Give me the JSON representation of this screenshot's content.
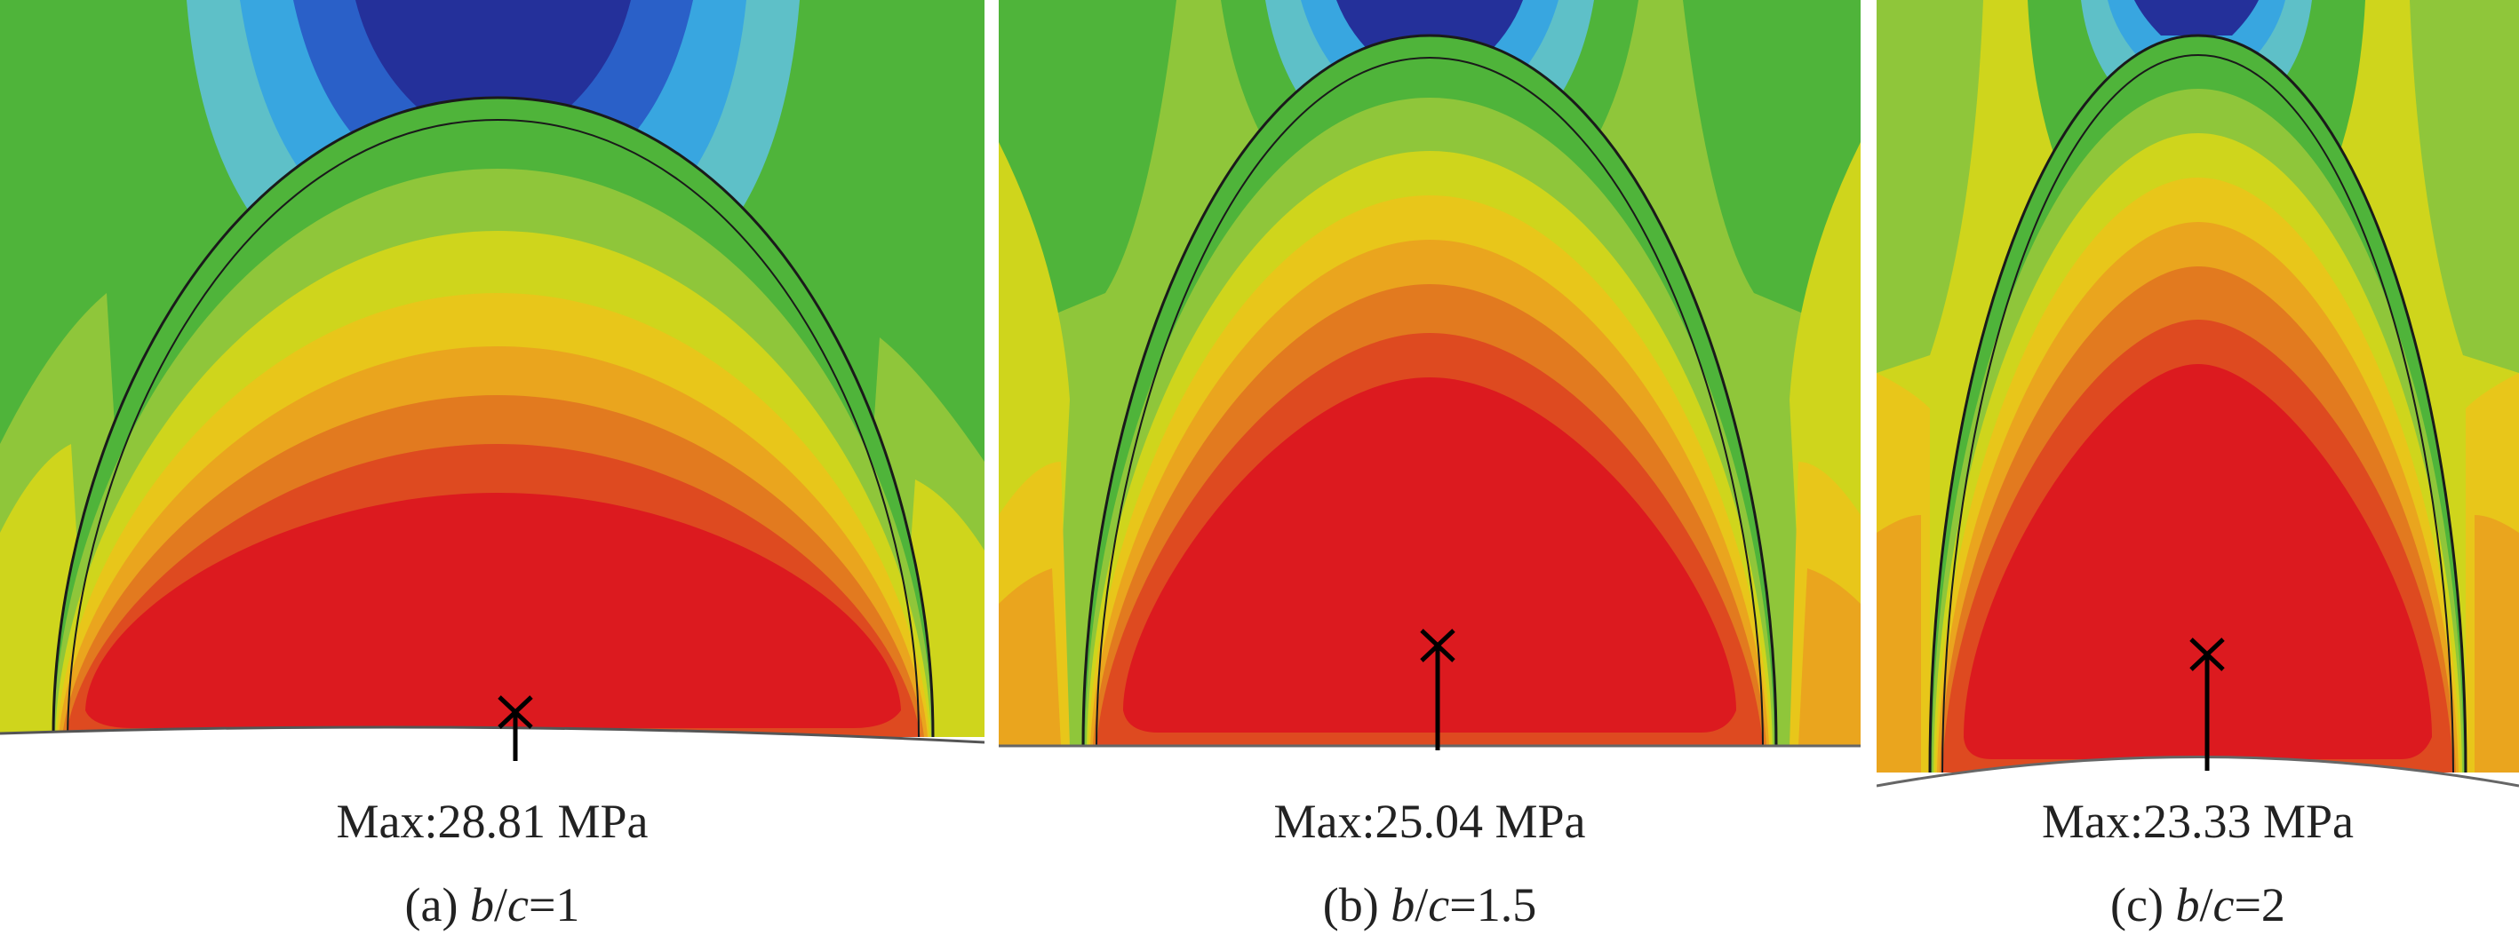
{
  "colors": {
    "red": "#dc1a1f",
    "red_orange": "#de4a20",
    "orange": "#e27a1f",
    "orange_yellow": "#eaa51e",
    "yellow": "#e8c61a",
    "yellow_green": "#cfd51c",
    "light_green": "#8fc63a",
    "green": "#4fb43a",
    "teal": "#5ec0c8",
    "light_blue": "#38a6e0",
    "blue": "#2a60c8",
    "dark_blue": "#24309a"
  },
  "panels": [
    {
      "id": "a",
      "max_label": "Max:28.81 MPa",
      "label_prefix": "(a) ",
      "label_var1": "b",
      "label_slash": "/",
      "label_var2": "c",
      "label_value": "=1"
    },
    {
      "id": "b",
      "max_label": "Max:25.04 MPa",
      "label_prefix": "(b) ",
      "label_var1": "b",
      "label_slash": "/",
      "label_var2": "c",
      "label_value": "=1.5"
    },
    {
      "id": "c",
      "max_label": "Max:23.33 MPa",
      "label_prefix": "(c) ",
      "label_var1": "b",
      "label_slash": "/",
      "label_var2": "c",
      "label_value": "=2"
    }
  ]
}
